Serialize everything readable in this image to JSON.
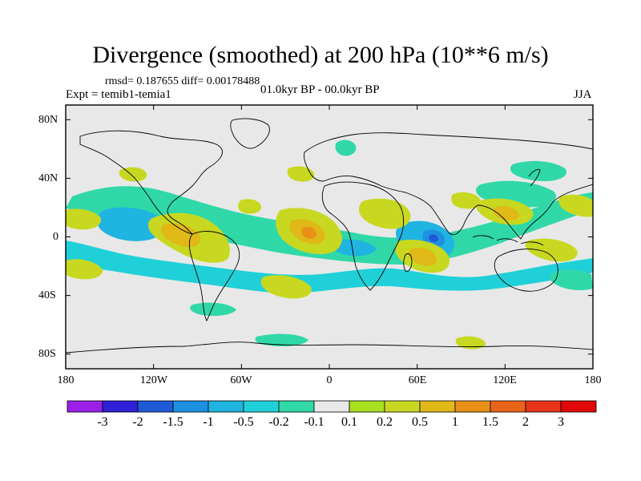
{
  "title": "Divergence (smoothed) at 200 hPa (10**6 m/s)",
  "subtitle_left_top": "rmsd= 0.187655 diff= 0.00178488",
  "subtitle_left": "Expt = temib1-temia1",
  "subtitle_center": "01.0kyr BP - 00.0kyr BP",
  "subtitle_right": "JJA",
  "y_ticks": [
    "80N",
    "40N",
    "0",
    "40S",
    "80S"
  ],
  "x_ticks": [
    "180",
    "120W",
    "60W",
    "0",
    "60E",
    "120E",
    "180"
  ],
  "colorbar": {
    "labels": [
      "-3",
      "-2",
      "-1.5",
      "-1",
      "-0.5",
      "-0.2",
      "-0.1",
      "0.1",
      "0.2",
      "0.5",
      "1",
      "1.5",
      "2",
      "3"
    ],
    "colors": [
      "#9a20e8",
      "#3020d8",
      "#1e5ad8",
      "#1e90e0",
      "#20b4e0",
      "#20d0d8",
      "#30d8a8",
      "#e8e8e8",
      "#a8e020",
      "#c8d820",
      "#e0b818",
      "#e89018",
      "#e86418",
      "#e83418",
      "#e00808"
    ]
  },
  "colors": {
    "background": "#e8e8e8",
    "coast": "#000000"
  }
}
